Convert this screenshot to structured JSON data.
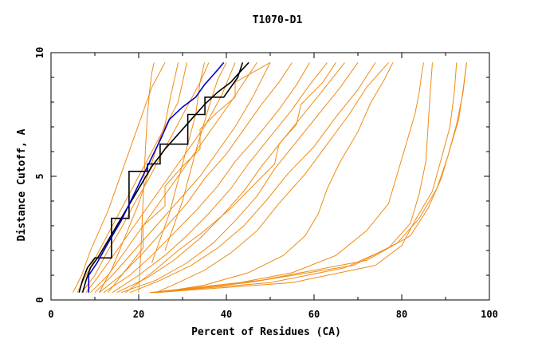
{
  "chart_data": {
    "type": "line",
    "title": "T1070-D1",
    "xlabel": "Percent of Residues (CA)",
    "ylabel": "Distance Cutoff, A",
    "xlim": [
      0,
      100
    ],
    "ylim": [
      0,
      10
    ],
    "x_ticks": [
      "0",
      "20",
      "40",
      "60",
      "80",
      "100"
    ],
    "y_ticks": [
      "0",
      "5",
      "10"
    ],
    "grid": false,
    "legend": "none",
    "colors": {
      "bundle": "#f08c14",
      "highlight": "#000000",
      "best": "#0000cc"
    },
    "series": [
      {
        "color": "#0000cc",
        "x": [
          8.6,
          8.6,
          10.5,
          13,
          16,
          19,
          22,
          25,
          27,
          30,
          33,
          35,
          37,
          38,
          39.4
        ],
        "y": [
          0.3,
          1,
          1.5,
          2.3,
          3.2,
          4.3,
          5.4,
          6.5,
          7.3,
          7.8,
          8.2,
          8.7,
          9.1,
          9.3,
          9.6
        ]
      },
      {
        "color": "#000000",
        "x": [
          7.2,
          8,
          9,
          11,
          13,
          15,
          17,
          19,
          21,
          23,
          26,
          29,
          32,
          35,
          38,
          41,
          43,
          45.1
        ],
        "y": [
          0.3,
          0.8,
          1.3,
          1.8,
          2.4,
          3,
          3.6,
          4.2,
          4.8,
          5.4,
          6.1,
          6.7,
          7.3,
          7.9,
          8.4,
          8.8,
          9.2,
          9.6
        ]
      },
      {
        "color": "#000000",
        "x": [
          6.4,
          7.2,
          8.3,
          10,
          13.8,
          13.8,
          17.8,
          17.8,
          22,
          22,
          24.9,
          24.9,
          31.2,
          31.2,
          35.1,
          35.1,
          39.4,
          42.6,
          43.7
        ],
        "y": [
          0.3,
          0.8,
          1.3,
          1.7,
          1.7,
          3.3,
          3.3,
          5.2,
          5.2,
          5.5,
          5.5,
          6.3,
          6.3,
          7.5,
          7.5,
          8.2,
          8.2,
          9.0,
          9.6
        ]
      },
      {
        "color": "#f08c14",
        "x": [
          5,
          7,
          9,
          11,
          13,
          15,
          17,
          19,
          21,
          23,
          26
        ],
        "y": [
          0.3,
          1,
          2,
          2.8,
          3.6,
          4.6,
          5.6,
          6.6,
          7.6,
          8.6,
          9.6
        ]
      },
      {
        "color": "#f08c14",
        "x": [
          6,
          8,
          11,
          14,
          17,
          20,
          23,
          26,
          29,
          31
        ],
        "y": [
          0.3,
          1,
          2,
          3,
          4,
          5,
          6,
          7,
          8,
          9.6
        ]
      },
      {
        "color": "#f08c14",
        "x": [
          7,
          10,
          13,
          16,
          19,
          22,
          25,
          28,
          31,
          34,
          36
        ],
        "y": [
          0.3,
          1,
          2,
          2.9,
          3.9,
          4.8,
          5.8,
          6.8,
          7.8,
          8.8,
          9.6
        ]
      },
      {
        "color": "#f08c14",
        "x": [
          8,
          11,
          15,
          19,
          23,
          27,
          31,
          35,
          39,
          42
        ],
        "y": [
          0.3,
          1,
          2,
          3,
          4,
          5,
          6,
          7,
          8.3,
          9.6
        ]
      },
      {
        "color": "#f08c14",
        "x": [
          9,
          13,
          17,
          21,
          25,
          29,
          33,
          37,
          41,
          44,
          47
        ],
        "y": [
          0.3,
          1,
          2,
          3,
          4,
          5,
          6,
          7,
          8,
          8.8,
          9.6
        ]
      },
      {
        "color": "#f08c14",
        "x": [
          10,
          14,
          19,
          24,
          29,
          34,
          38,
          42,
          46,
          50
        ],
        "y": [
          0.3,
          1,
          2,
          3,
          4,
          5,
          6,
          7,
          8.2,
          9.6
        ]
      },
      {
        "color": "#f08c14",
        "x": [
          11,
          16,
          21,
          26,
          31,
          35,
          40,
          44,
          48,
          52,
          55
        ],
        "y": [
          0.3,
          1,
          1.9,
          2.9,
          3.9,
          4.9,
          5.9,
          6.9,
          7.9,
          8.8,
          9.6
        ]
      },
      {
        "color": "#f08c14",
        "x": [
          12,
          18,
          23,
          28,
          33,
          38,
          42,
          47,
          52,
          56,
          59
        ],
        "y": [
          0.3,
          1,
          1.8,
          2.7,
          3.6,
          4.6,
          5.6,
          6.6,
          7.7,
          8.7,
          9.6
        ]
      },
      {
        "color": "#f08c14",
        "x": [
          14,
          20,
          26,
          31,
          36,
          41,
          45,
          50,
          55,
          59,
          63
        ],
        "y": [
          0.3,
          1,
          1.8,
          2.6,
          3.5,
          4.5,
          5.5,
          6.6,
          7.7,
          8.7,
          9.6
        ]
      },
      {
        "color": "#f08c14",
        "x": [
          15,
          22,
          28,
          34,
          39,
          44,
          48,
          53,
          58,
          63,
          67
        ],
        "y": [
          0.3,
          0.9,
          1.6,
          2.5,
          3.4,
          4.4,
          5.4,
          6.5,
          7.6,
          8.7,
          9.6
        ]
      },
      {
        "color": "#f08c14",
        "x": [
          16,
          24,
          31,
          37,
          42,
          47,
          51,
          56,
          61,
          66,
          70
        ],
        "y": [
          0.3,
          0.8,
          1.5,
          2.3,
          3.2,
          4.2,
          5.3,
          6.4,
          7.5,
          8.6,
          9.6
        ]
      },
      {
        "color": "#f08c14",
        "x": [
          13,
          17,
          21,
          21,
          26,
          26,
          30,
          34,
          34,
          38,
          42,
          42,
          46,
          50
        ],
        "y": [
          0.3,
          1.2,
          2.1,
          3,
          3.8,
          4.6,
          5.4,
          6.1,
          6.9,
          7.6,
          8.2,
          8.8,
          9.2,
          9.6
        ]
      },
      {
        "color": "#f08c14",
        "x": [
          17,
          23,
          29,
          35,
          41,
          46,
          51,
          52,
          56,
          57,
          62,
          65
        ],
        "y": [
          0.3,
          1.1,
          2,
          2.8,
          3.7,
          4.6,
          5.5,
          6.3,
          7.1,
          7.9,
          8.8,
          9.6
        ]
      },
      {
        "color": "#f08c14",
        "x": [
          18,
          25,
          32,
          38,
          44,
          49,
          54,
          60,
          65,
          70,
          74
        ],
        "y": [
          0.3,
          0.8,
          1.4,
          2.1,
          3,
          4,
          5.1,
          6.2,
          7.4,
          8.5,
          9.6
        ]
      },
      {
        "color": "#f08c14",
        "x": [
          11,
          14,
          17,
          20,
          22,
          24,
          26,
          27,
          28,
          29
        ],
        "y": [
          0.3,
          1.3,
          2.6,
          3.9,
          5,
          6.1,
          7.1,
          8,
          8.8,
          9.6
        ]
      },
      {
        "color": "#f08c14",
        "x": [
          20,
          20.5,
          21,
          21.5,
          22,
          22.5,
          23,
          23.5
        ],
        "y": [
          0.3,
          2,
          4,
          6,
          7.5,
          8.5,
          9.2,
          9.6
        ]
      },
      {
        "color": "#f08c14",
        "x": [
          24,
          29,
          35,
          41,
          47,
          52,
          58,
          63,
          68,
          72,
          77
        ],
        "y": [
          0.3,
          0.7,
          1.2,
          1.9,
          2.8,
          3.9,
          5.1,
          6.3,
          7.5,
          8.6,
          9.6
        ]
      },
      {
        "color": "#f08c14",
        "x": [
          23,
          27,
          30,
          33,
          34,
          35
        ],
        "y": [
          1.5,
          3.5,
          5.5,
          7.5,
          8.8,
          9.6
        ]
      },
      {
        "color": "#f08c14",
        "x": [
          26,
          30,
          33,
          36,
          38,
          40
        ],
        "y": [
          2,
          4,
          6,
          7.8,
          8.9,
          9.6
        ]
      },
      {
        "color": "#f08c14",
        "x": [
          24.5,
          35,
          45,
          53,
          58,
          61,
          63,
          66,
          70,
          73,
          76,
          78
        ],
        "y": [
          0.3,
          0.6,
          1.1,
          1.8,
          2.6,
          3.5,
          4.5,
          5.6,
          6.8,
          8,
          8.9,
          9.6
        ]
      },
      {
        "color": "#f08c14",
        "x": [
          23,
          40,
          55,
          65,
          72,
          77,
          79,
          81,
          83,
          84,
          84.5,
          85
        ],
        "y": [
          0.3,
          0.6,
          1.1,
          1.8,
          2.8,
          3.9,
          5.1,
          6.3,
          7.5,
          8.4,
          9.1,
          9.6
        ]
      },
      {
        "color": "#f08c14",
        "x": [
          23,
          50,
          67,
          77,
          82,
          84,
          85.5,
          86,
          86.5,
          87
        ],
        "y": [
          0.3,
          0.7,
          1.3,
          2.1,
          3.1,
          4.3,
          5.6,
          7,
          8.4,
          9.6
        ]
      },
      {
        "color": "#f08c14",
        "x": [
          24,
          55,
          74,
          80,
          83,
          87,
          89,
          91,
          92,
          92.5
        ],
        "y": [
          0.3,
          0.7,
          1.4,
          2.2,
          3.2,
          4.4,
          5.7,
          7,
          8.4,
          9.6
        ]
      },
      {
        "color": "#f08c14",
        "x": [
          23.5,
          45,
          69,
          79,
          84,
          88,
          90.5,
          92.5,
          94,
          94.8
        ],
        "y": [
          0.3,
          0.7,
          1.4,
          2.3,
          3.3,
          4.5,
          5.8,
          7.1,
          8.4,
          9.6
        ]
      },
      {
        "color": "#f08c14",
        "x": [
          22.5,
          48,
          72,
          82,
          86,
          89,
          91,
          93,
          94,
          94.8
        ],
        "y": [
          0.3,
          0.8,
          1.6,
          2.6,
          3.7,
          4.9,
          6.1,
          7.3,
          8.5,
          9.6
        ]
      }
    ]
  }
}
